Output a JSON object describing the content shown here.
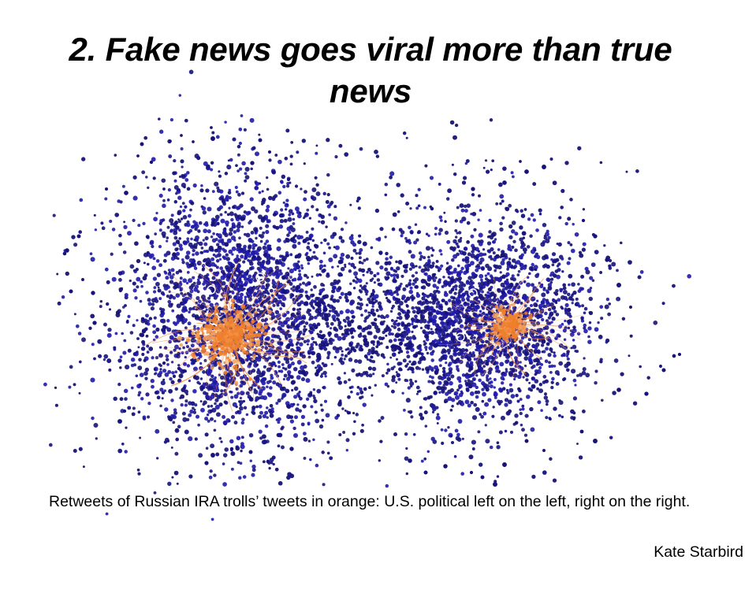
{
  "slide": {
    "title": "2. Fake news goes viral more than true news",
    "caption": "Retweets of Russian IRA trolls’ tweets in orange: U.S. political left on the left, right on the right.",
    "credit": "Kate Starbird"
  },
  "network": {
    "node_color": "#1f1aa8",
    "node_color_dark": "#17137a",
    "highlight_color": "#f07f2c",
    "highlight_color_light": "#f5a05a",
    "clusters": [
      {
        "name": "left",
        "highlight": "orange retweets of IRA troll tweets"
      },
      {
        "name": "right",
        "highlight": "orange retweets of IRA troll tweets"
      }
    ]
  }
}
